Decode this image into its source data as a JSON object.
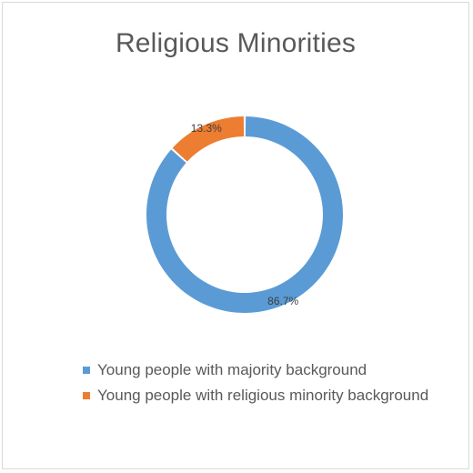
{
  "chart_data": {
    "type": "pie",
    "variant": "donut",
    "title": "Religious Minorities",
    "series": [
      {
        "name": "Religious Minorities",
        "labels": [
          "Young people with majority background",
          "Young people with religious minority background"
        ],
        "values": [
          86.7,
          13.3
        ],
        "value_labels": [
          "86.7%",
          "13.3%"
        ],
        "colors": [
          "#5b9bd5",
          "#ed7d31"
        ]
      }
    ],
    "legend_position": "bottom",
    "start_angle": "12 o'clock, clockwise"
  }
}
